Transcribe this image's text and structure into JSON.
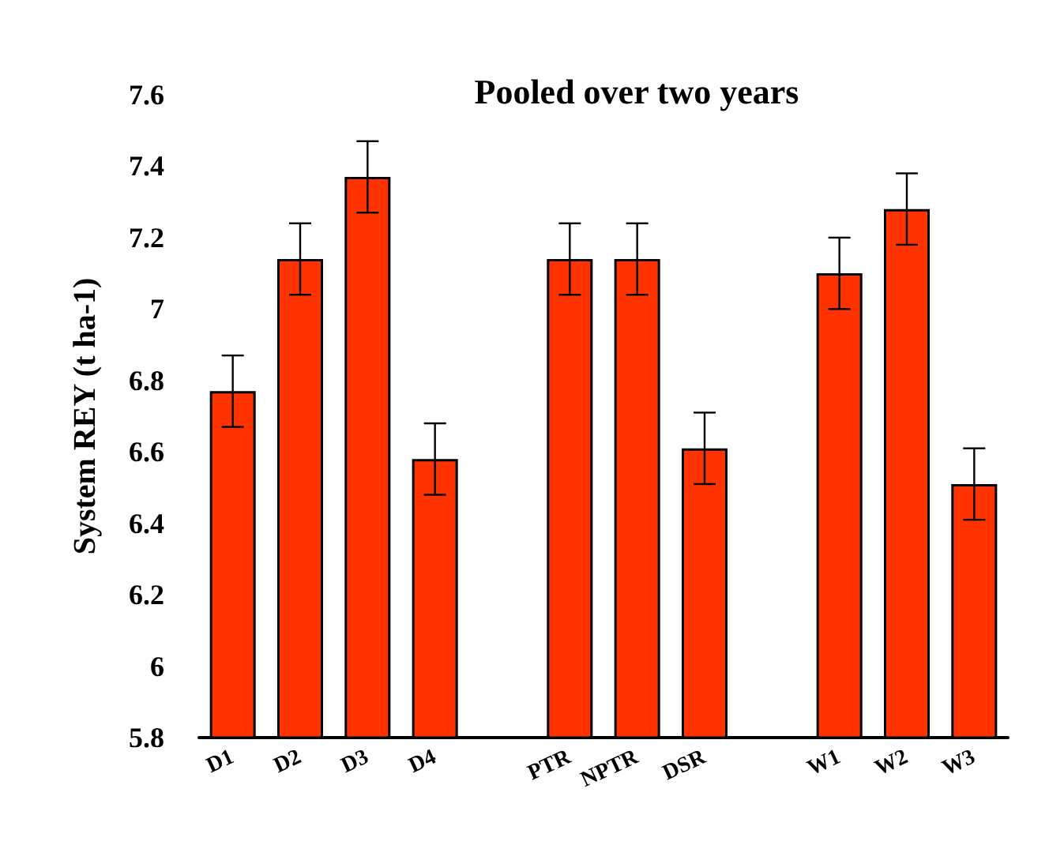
{
  "chart_data": {
    "type": "bar",
    "title": "Pooled over two years",
    "ylabel": "System REY (t ha-1)",
    "categories": [
      "D1",
      "D2",
      "D3",
      "D4",
      null,
      "PTR",
      "NPTR",
      "DSR",
      null,
      "W1",
      "W2",
      "W3"
    ],
    "values": [
      6.77,
      7.14,
      7.37,
      6.58,
      null,
      7.14,
      7.14,
      6.61,
      null,
      7.1,
      7.28,
      6.51
    ],
    "errors": [
      0.1,
      0.1,
      0.1,
      0.1,
      null,
      0.1,
      0.1,
      0.1,
      null,
      0.1,
      0.1,
      0.1
    ],
    "color": "#ff3300",
    "ylim": [
      5.8,
      7.6
    ],
    "yticks": [
      5.8,
      6,
      6.2,
      6.4,
      6.6,
      6.8,
      7,
      7.2,
      7.4,
      7.6
    ],
    "grid": false
  }
}
